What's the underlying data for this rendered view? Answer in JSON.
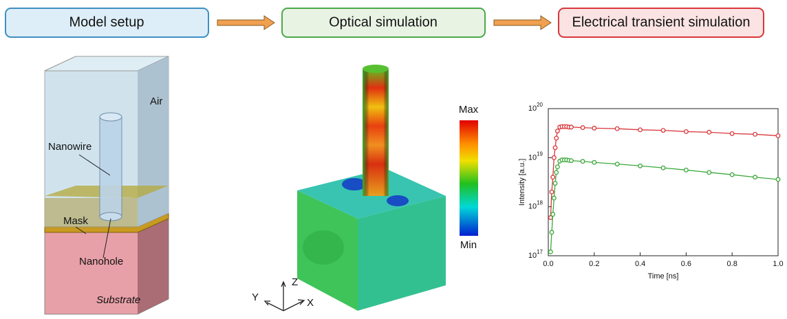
{
  "steps": [
    "Model setup",
    "Optical simulation",
    "Electrical transient simulation"
  ],
  "model_labels": {
    "air": "Air",
    "nanowire": "Nanowire",
    "mask": "Mask",
    "nanohole": "Nanohole",
    "substrate": "Substrate"
  },
  "colorbar": {
    "max": "Max",
    "min": "Min"
  },
  "axes_triad": {
    "z": "Z",
    "y": "Y",
    "x": "X"
  },
  "chart_data": {
    "type": "line",
    "xlabel": "Time [ns]",
    "ylabel": "Intensity [a.u.]",
    "x": [
      0.01,
      0.015,
      0.02,
      0.025,
      0.03,
      0.035,
      0.04,
      0.05,
      0.06,
      0.07,
      0.08,
      0.09,
      0.1,
      0.15,
      0.2,
      0.3,
      0.4,
      0.5,
      0.6,
      0.7,
      0.8,
      0.9,
      1.0
    ],
    "series": [
      {
        "color": "#d9363a",
        "values": [
          6e+17,
          2e+18,
          4e+18,
          1e+19,
          1.6e+19,
          2.5e+19,
          3.5e+19,
          4.2e+19,
          4.3e+19,
          4.3e+19,
          4.3e+19,
          4.2e+19,
          4.2e+19,
          4.1e+19,
          4e+19,
          3.9e+19,
          3.7e+19,
          3.6e+19,
          3.4e+19,
          3.3e+19,
          3.1e+19,
          3e+19,
          2.8e+19
        ]
      },
      {
        "color": "#3aa83a",
        "values": [
          1.2e+17,
          3e+17,
          7e+17,
          1.5e+18,
          3e+18,
          5e+18,
          6.5e+18,
          8.5e+18,
          9e+18,
          9e+18,
          9e+18,
          8.8e+18,
          8.7e+18,
          8.4e+18,
          8e+18,
          7.4e+18,
          6.8e+18,
          6.2e+18,
          5.6e+18,
          5e+18,
          4.5e+18,
          4e+18,
          3.6e+18
        ]
      }
    ],
    "xlim": [
      0,
      1
    ],
    "ylim": [
      1e+17,
      1e+20
    ],
    "log_y": true,
    "xticks": [
      {
        "value": 0,
        "label": "0.0"
      },
      0.2,
      0.4,
      0.6,
      0.8,
      {
        "value": 1,
        "label": "1.0"
      }
    ],
    "yticks": [
      {
        "value": 1e+17,
        "label": "10",
        "exponent": "17"
      },
      {
        "value": 1e+18,
        "label": "10",
        "exponent": "18"
      },
      {
        "value": 1e+19,
        "label": "10",
        "exponent": "19"
      },
      {
        "value": 1e+20,
        "label": "10",
        "exponent": "20"
      }
    ]
  }
}
